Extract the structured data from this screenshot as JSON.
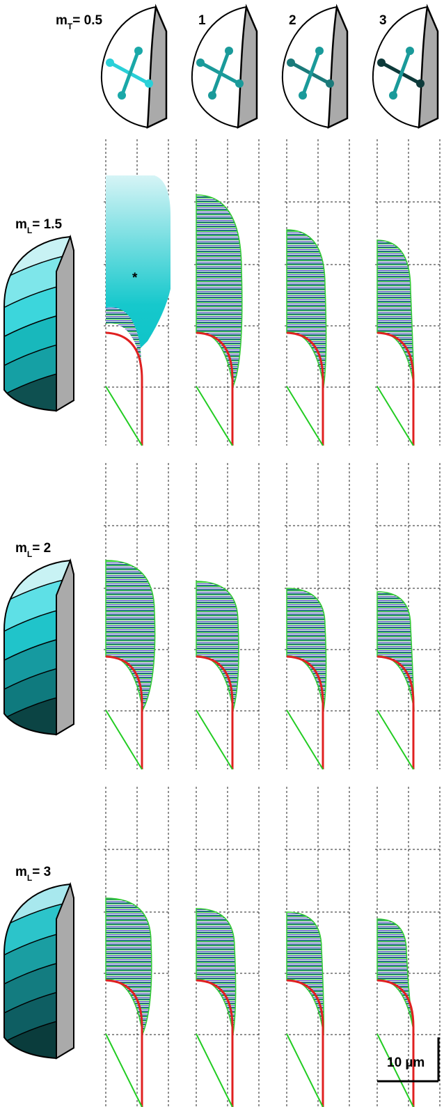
{
  "header": {
    "columns": [
      {
        "symbol": "m",
        "subscript": "T",
        "value": "= 0.5"
      },
      "1",
      "2",
      "3"
    ]
  },
  "rows": [
    {
      "symbol": "m",
      "subscript": "L",
      "value": "= 1.5"
    },
    {
      "symbol": "m",
      "subscript": "L",
      "value": "= 2"
    },
    {
      "symbol": "m",
      "subscript": "L",
      "value": "= 3"
    }
  ],
  "annotation": "*",
  "scale_bar": "10 µm"
}
